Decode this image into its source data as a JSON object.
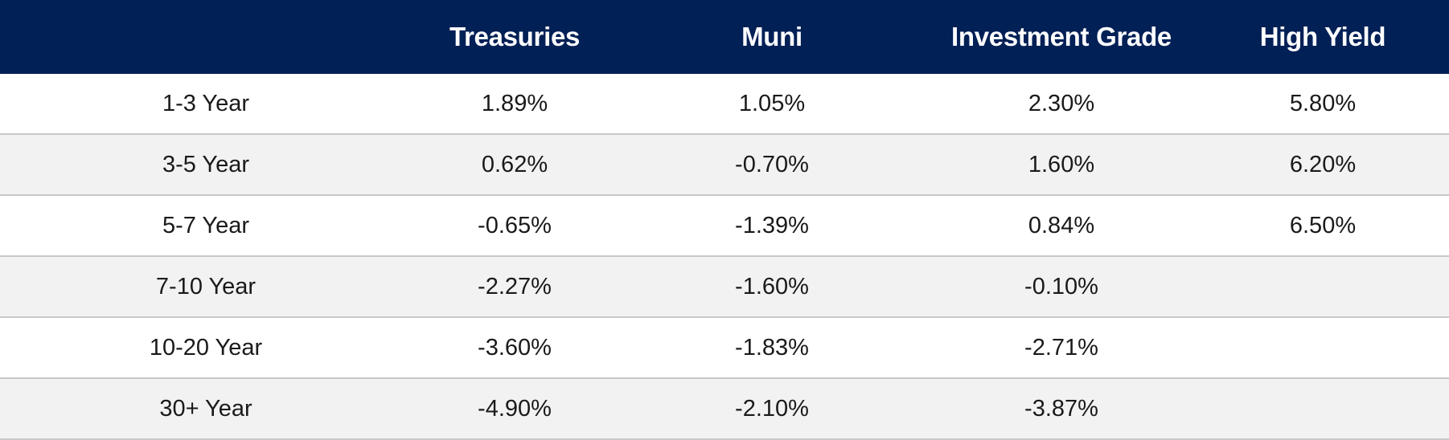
{
  "header": {
    "blank": "",
    "treasuries": "Treasuries",
    "muni": "Muni",
    "investment_grade": "Investment Grade",
    "high_yield": "High Yield"
  },
  "rows": [
    {
      "term": "1-3 Year",
      "treasuries": "1.89%",
      "muni": "1.05%",
      "investment_grade": "2.30%",
      "high_yield": "5.80%"
    },
    {
      "term": "3-5 Year",
      "treasuries": "0.62%",
      "muni": "-0.70%",
      "investment_grade": "1.60%",
      "high_yield": "6.20%"
    },
    {
      "term": "5-7 Year",
      "treasuries": "-0.65%",
      "muni": "-1.39%",
      "investment_grade": "0.84%",
      "high_yield": "6.50%"
    },
    {
      "term": "7-10 Year",
      "treasuries": "-2.27%",
      "muni": "-1.60%",
      "investment_grade": "-0.10%",
      "high_yield": ""
    },
    {
      "term": "10-20 Year",
      "treasuries": "-3.60%",
      "muni": "-1.83%",
      "investment_grade": "-2.71%",
      "high_yield": ""
    },
    {
      "term": "30+ Year",
      "treasuries": "-4.90%",
      "muni": "-2.10%",
      "investment_grade": "-3.87%",
      "high_yield": ""
    }
  ],
  "colors": {
    "header_bg": "#002056",
    "header_text": "#ffffff",
    "row_alt_bg": "#f2f2f2",
    "divider": "#c8c8c8"
  }
}
